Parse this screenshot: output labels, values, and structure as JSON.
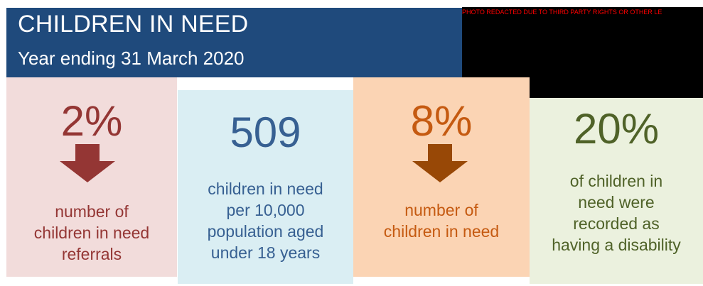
{
  "header": {
    "title": "CHILDREN IN NEED",
    "subtitle": "Year ending 31 March 2020"
  },
  "photo": {
    "notice": "PHOTO REDACTED DUE TO THIRD PARTY RIGHTS OR OTHER LE"
  },
  "stats": [
    {
      "value": "2%",
      "direction": "down",
      "description": [
        "number of",
        "children in need",
        "referrals"
      ],
      "color": "#943634",
      "background": "#f2dcdb"
    },
    {
      "value": "509",
      "description": [
        "children in need",
        "per 10,000",
        "population aged",
        "under 18 years"
      ],
      "color": "#376092",
      "background": "#daeef3"
    },
    {
      "value": "8%",
      "direction": "down",
      "description": [
        "number of",
        "children in need"
      ],
      "color": "#c55a11",
      "arrow_color": "#984806",
      "background": "#fbd4b4"
    },
    {
      "value": "20%",
      "description": [
        "of children in",
        "need were",
        "recorded as",
        "having a disability"
      ],
      "color": "#4f6228",
      "background": "#ebf1de"
    }
  ],
  "colors": {
    "banner": "#1f4a7c",
    "banner_text": "#ffffff"
  }
}
